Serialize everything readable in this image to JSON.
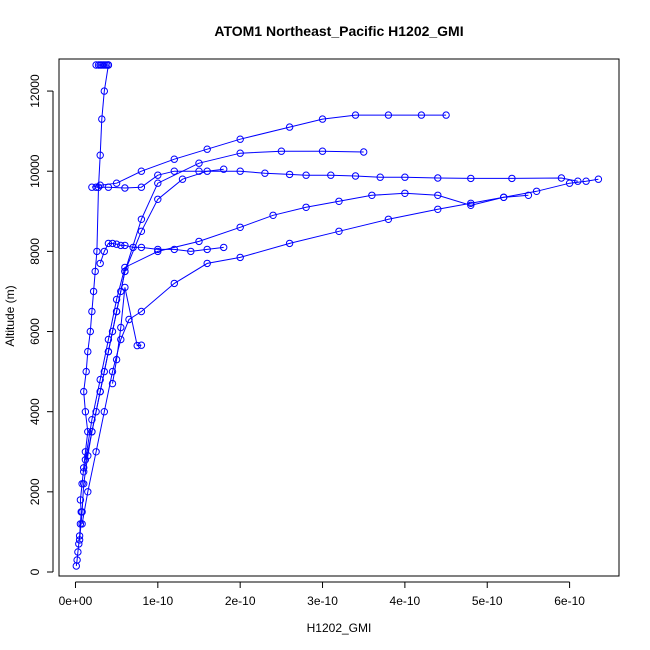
{
  "chart_data": {
    "type": "scatter",
    "title": "ATOM1 Northeast_Pacific H1202_GMI",
    "xlabel": "H1202_GMI",
    "ylabel": "Altitude (m)",
    "xlim": [
      -2e-11,
      6.6e-10
    ],
    "ylim": [
      -100,
      12800
    ],
    "x_ticks": [
      0,
      1e-10,
      2e-10,
      3e-10,
      4e-10,
      5e-10,
      6e-10
    ],
    "x_tick_labels": [
      "0e+00",
      "1e-10",
      "2e-10",
      "3e-10",
      "4e-10",
      "5e-10",
      "6e-10"
    ],
    "y_ticks": [
      0,
      2000,
      4000,
      6000,
      8000,
      10000,
      12000
    ],
    "y_tick_labels": [
      "0",
      "2000",
      "4000",
      "6000",
      "8000",
      "10000",
      "12000"
    ],
    "grid": false,
    "legend": "none",
    "marker": "open-circle",
    "color": "#0000ff",
    "series": [
      {
        "x": [
          1e-12,
          2e-12,
          3e-12,
          4e-12,
          5e-12,
          6e-12,
          7e-12,
          6e-12,
          8e-12,
          1e-11,
          1.2e-11,
          1.5e-11,
          1.2e-11,
          1e-11,
          1.3e-11,
          1.5e-11,
          1.8e-11,
          2e-11,
          2.2e-11,
          2.4e-11,
          2.6e-11,
          2.8e-11,
          3e-11,
          3.2e-11,
          3.5e-11,
          4e-11
        ],
        "y": [
          150,
          300,
          500,
          700,
          900,
          1200,
          1500,
          1800,
          2200,
          2600,
          3000,
          3500,
          4000,
          4500,
          5000,
          5500,
          6000,
          6500,
          7000,
          7500,
          8000,
          9600,
          10400,
          11300,
          12000,
          12650
        ]
      },
      {
        "x": [
          5e-12,
          8e-12,
          1e-11,
          1.5e-11,
          2e-11,
          2.5e-11,
          3e-11,
          3.5e-11,
          4e-11,
          4.5e-11,
          5e-11,
          5.5e-11,
          6e-11,
          8e-11,
          1e-10,
          1.3e-10,
          1.6e-10,
          1.8e-10
        ],
        "y": [
          800,
          1500,
          2200,
          2900,
          3500,
          4000,
          4500,
          5000,
          5500,
          6000,
          6500,
          7000,
          7500,
          8500,
          9300,
          9800,
          10000,
          10050
        ]
      },
      {
        "x": [
          1e-11,
          2e-11,
          3e-11,
          4e-11,
          5e-11,
          6e-11,
          8e-11,
          1e-10,
          1.5e-10,
          2e-10,
          2.5e-10,
          3e-10,
          3.5e-10
        ],
        "y": [
          2500,
          3500,
          4500,
          5500,
          6500,
          7500,
          8800,
          9700,
          10200,
          10450,
          10500,
          10500,
          10480
        ]
      },
      {
        "x": [
          8e-12,
          1.5e-11,
          2.5e-11,
          3.5e-11,
          4.5e-11,
          5.5e-11,
          6.5e-11,
          8e-11,
          1.2e-10,
          1.6e-10,
          2e-10,
          2.6e-10,
          3.2e-10,
          3.8e-10,
          4.4e-10,
          4.8e-10,
          5.2e-10,
          5.5e-10
        ],
        "y": [
          1200,
          2000,
          3000,
          4000,
          5000,
          5800,
          6300,
          6500,
          7200,
          7700,
          7850,
          8200,
          8500,
          8800,
          9050,
          9200,
          9350,
          9400
        ]
      },
      {
        "x": [
          1.2e-11,
          2e-11,
          3e-11,
          4e-11,
          5e-11,
          6e-11,
          1e-10,
          1.5e-10,
          2e-10,
          2.4e-10,
          2.8e-10,
          3.2e-10,
          3.6e-10,
          4e-10,
          4.4e-10,
          4.8e-10,
          5.2e-10,
          5.6e-10,
          6e-10,
          6.2e-10,
          6.35e-10
        ],
        "y": [
          2800,
          3800,
          4800,
          5800,
          6800,
          7600,
          8000,
          8250,
          8600,
          8900,
          9100,
          9250,
          9400,
          9450,
          9400,
          9150,
          9350,
          9500,
          9700,
          9750,
          9800
        ]
      },
      {
        "x": [
          3e-11,
          3.5e-11,
          4e-11,
          4.5e-11,
          5e-11,
          5.5e-11,
          6e-11,
          7e-11,
          8e-11,
          1e-10,
          1.2e-10,
          1.4e-10,
          1.6e-10,
          1.8e-10
        ],
        "y": [
          7700,
          8000,
          8200,
          8200,
          8180,
          8150,
          8150,
          8100,
          8100,
          8050,
          8050,
          8000,
          8050,
          8100
        ]
      },
      {
        "x": [
          2e-11,
          3e-11,
          5e-11,
          8e-11,
          1.2e-10,
          1.6e-10,
          2e-10,
          2.6e-10,
          3e-10,
          3.4e-10,
          3.8e-10,
          4.2e-10,
          4.5e-10
        ],
        "y": [
          9600,
          9650,
          9700,
          10000,
          10300,
          10550,
          10800,
          11100,
          11300,
          11400,
          11400,
          11400,
          11400
        ]
      },
      {
        "x": [
          2.5e-11,
          4e-11,
          6e-11,
          8e-11,
          1e-10,
          1.2e-10,
          1.5e-10,
          2e-10,
          2.3e-10,
          2.6e-10,
          2.8e-10,
          3.1e-10,
          3.4e-10,
          3.7e-10,
          4e-10,
          4.4e-10,
          4.8e-10,
          5.3e-10,
          5.9e-10,
          6.1e-10
        ],
        "y": [
          9600,
          9600,
          9580,
          9600,
          9900,
          10000,
          10000,
          10000,
          9950,
          9920,
          9900,
          9900,
          9880,
          9850,
          9850,
          9830,
          9820,
          9820,
          9830,
          9750
        ]
      },
      {
        "x": [
          4.5e-11,
          5e-11,
          5.5e-11,
          6e-11,
          7.5e-11,
          8e-11
        ],
        "y": [
          4700,
          5300,
          6100,
          7100,
          5650,
          5660
        ]
      },
      {
        "x": [
          2.5e-11,
          2.8e-11,
          3e-11,
          3.2e-11,
          3.4e-11,
          3.6e-11,
          3.8e-11,
          4e-11
        ],
        "y": [
          12650,
          12650,
          12650,
          12650,
          12650,
          12650,
          12650,
          12650
        ]
      }
    ]
  }
}
